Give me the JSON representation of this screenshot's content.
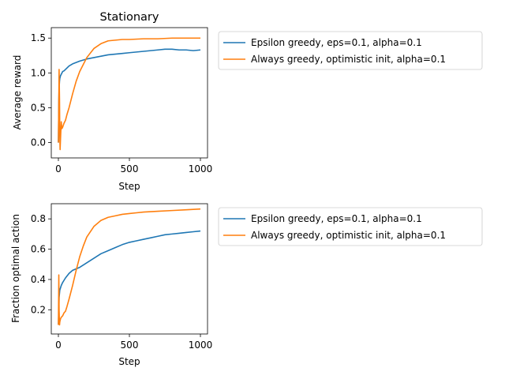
{
  "figure": {
    "background": "#ffffff",
    "colors": {
      "series1": "#1f77b4",
      "series2": "#ff7f0e",
      "axis": "#000000"
    }
  },
  "chart_data": [
    {
      "type": "line",
      "title": "Stationary",
      "xlabel": "Step",
      "ylabel": "Average reward",
      "xlim": [
        -50,
        1050
      ],
      "ylim": [
        -0.22,
        1.65
      ],
      "xticks": [
        0,
        500,
        1000
      ],
      "yticks": [
        0.0,
        0.5,
        1.0,
        1.5
      ],
      "xtick_labels": [
        "0",
        "500",
        "1000"
      ],
      "ytick_labels": [
        "0.0",
        "0.5",
        "1.0",
        "1.5"
      ],
      "grid": false,
      "legend": "outside-right",
      "series": [
        {
          "name": "Epsilon greedy, eps=0.1, alpha=0.1",
          "color": "#1f77b4",
          "x": [
            0,
            3,
            5,
            8,
            10,
            15,
            20,
            30,
            40,
            50,
            75,
            100,
            125,
            150,
            200,
            250,
            300,
            350,
            400,
            450,
            500,
            550,
            600,
            650,
            700,
            750,
            800,
            850,
            900,
            950,
            1000
          ],
          "y": [
            0.0,
            0.6,
            0.78,
            0.88,
            0.92,
            0.96,
            0.98,
            1.02,
            1.03,
            1.05,
            1.1,
            1.13,
            1.15,
            1.17,
            1.2,
            1.22,
            1.24,
            1.26,
            1.27,
            1.28,
            1.29,
            1.3,
            1.31,
            1.32,
            1.33,
            1.34,
            1.34,
            1.33,
            1.33,
            1.32,
            1.33
          ]
        },
        {
          "name": "Always greedy, optimistic init, alpha=0.1",
          "color": "#ff7f0e",
          "x": [
            0,
            2,
            5,
            8,
            10,
            12,
            15,
            20,
            25,
            30,
            40,
            50,
            60,
            75,
            100,
            125,
            150,
            175,
            200,
            250,
            300,
            350,
            400,
            450,
            500,
            600,
            700,
            800,
            900,
            1000
          ],
          "y": [
            0.0,
            0.4,
            1.05,
            0.6,
            0.1,
            -0.1,
            0.05,
            0.3,
            0.2,
            0.22,
            0.28,
            0.32,
            0.4,
            0.5,
            0.7,
            0.88,
            1.02,
            1.12,
            1.22,
            1.35,
            1.42,
            1.46,
            1.47,
            1.48,
            1.48,
            1.49,
            1.49,
            1.5,
            1.5,
            1.5
          ]
        }
      ]
    },
    {
      "type": "line",
      "title": "",
      "xlabel": "Step",
      "ylabel": "Fraction optimal action",
      "xlim": [
        -50,
        1050
      ],
      "ylim": [
        0.04,
        0.9
      ],
      "xticks": [
        0,
        500,
        1000
      ],
      "yticks": [
        0.2,
        0.4,
        0.6,
        0.8
      ],
      "xtick_labels": [
        "0",
        "500",
        "1000"
      ],
      "ytick_labels": [
        "0.2",
        "0.4",
        "0.6",
        "0.8"
      ],
      "grid": false,
      "legend": "outside-right",
      "series": [
        {
          "name": "Epsilon greedy, eps=0.1, alpha=0.1",
          "color": "#1f77b4",
          "x": [
            0,
            5,
            10,
            20,
            30,
            50,
            75,
            100,
            125,
            150,
            200,
            250,
            300,
            350,
            400,
            450,
            500,
            550,
            600,
            650,
            700,
            750,
            800,
            850,
            900,
            950,
            1000
          ],
          "y": [
            0.1,
            0.28,
            0.33,
            0.36,
            0.38,
            0.41,
            0.44,
            0.46,
            0.47,
            0.48,
            0.51,
            0.54,
            0.57,
            0.59,
            0.61,
            0.63,
            0.645,
            0.655,
            0.665,
            0.675,
            0.685,
            0.695,
            0.7,
            0.705,
            0.71,
            0.715,
            0.72
          ]
        },
        {
          "name": "Always greedy, optimistic init, alpha=0.1",
          "color": "#ff7f0e",
          "x": [
            0,
            3,
            5,
            8,
            10,
            15,
            20,
            30,
            40,
            50,
            60,
            75,
            100,
            125,
            150,
            175,
            200,
            250,
            300,
            350,
            400,
            450,
            500,
            550,
            600,
            700,
            800,
            900,
            1000
          ],
          "y": [
            0.1,
            0.43,
            0.2,
            0.1,
            0.12,
            0.14,
            0.15,
            0.16,
            0.18,
            0.19,
            0.22,
            0.27,
            0.36,
            0.46,
            0.55,
            0.62,
            0.68,
            0.75,
            0.79,
            0.81,
            0.82,
            0.83,
            0.835,
            0.84,
            0.845,
            0.85,
            0.855,
            0.86,
            0.865
          ]
        }
      ]
    }
  ]
}
